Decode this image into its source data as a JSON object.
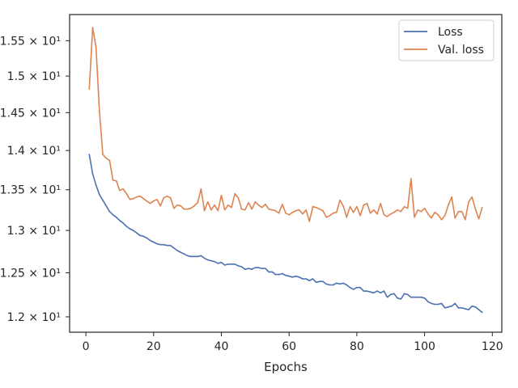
{
  "chart_data": {
    "type": "line",
    "xlabel": "Epochs",
    "ylabel": "",
    "xlim": [
      -4.8,
      122.8
    ],
    "ylim": [
      11.83,
      15.88
    ],
    "x_ticks": [
      0,
      20,
      40,
      60,
      80,
      100,
      120
    ],
    "y_ticks": [
      {
        "value": 12.0,
        "label": "1.2 × 10¹"
      },
      {
        "value": 12.5,
        "label": "1.25 × 10¹"
      },
      {
        "value": 13.0,
        "label": "1.3 × 10¹"
      },
      {
        "value": 13.5,
        "label": "1.35 × 10¹"
      },
      {
        "value": 14.0,
        "label": "1.4 × 10¹"
      },
      {
        "value": 14.5,
        "label": "1.45 × 10¹"
      },
      {
        "value": 15.0,
        "label": "1.5 × 10¹"
      },
      {
        "value": 15.5,
        "label": "1.55 × 10¹"
      }
    ],
    "y_scale": "log",
    "grid": false,
    "legend_position": "top-right",
    "series": [
      {
        "name": "Loss",
        "color": "#4c72b0",
        "x": [
          1,
          2,
          3,
          4,
          5,
          6,
          7,
          8,
          9,
          10,
          11,
          12,
          13,
          14,
          15,
          16,
          17,
          18,
          19,
          20,
          21,
          22,
          23,
          24,
          25,
          26,
          27,
          28,
          29,
          30,
          31,
          32,
          33,
          34,
          35,
          36,
          37,
          38,
          39,
          40,
          41,
          42,
          43,
          44,
          45,
          46,
          47,
          48,
          49,
          50,
          51,
          52,
          53,
          54,
          55,
          56,
          57,
          58,
          59,
          60,
          61,
          62,
          63,
          64,
          65,
          66,
          67,
          68,
          69,
          70,
          71,
          72,
          73,
          74,
          75,
          76,
          77,
          78,
          79,
          80,
          81,
          82,
          83,
          84,
          85,
          86,
          87,
          88,
          89,
          90,
          91,
          92,
          93,
          94,
          95,
          96,
          97,
          98,
          99,
          100,
          101,
          102,
          103,
          104,
          105,
          106,
          107,
          108,
          109,
          110,
          111,
          112,
          113,
          114,
          115,
          116,
          117
        ],
        "values": [
          13.95,
          13.7,
          13.56,
          13.44,
          13.37,
          13.3,
          13.23,
          13.19,
          13.16,
          13.12,
          13.09,
          13.05,
          13.02,
          13.0,
          12.97,
          12.94,
          12.93,
          12.91,
          12.88,
          12.86,
          12.84,
          12.83,
          12.83,
          12.82,
          12.82,
          12.79,
          12.76,
          12.74,
          12.72,
          12.7,
          12.69,
          12.69,
          12.69,
          12.7,
          12.67,
          12.65,
          12.64,
          12.63,
          12.61,
          12.62,
          12.59,
          12.6,
          12.6,
          12.6,
          12.58,
          12.57,
          12.54,
          12.55,
          12.54,
          12.56,
          12.56,
          12.55,
          12.55,
          12.51,
          12.51,
          12.48,
          12.48,
          12.49,
          12.47,
          12.46,
          12.45,
          12.46,
          12.45,
          12.43,
          12.43,
          12.41,
          12.43,
          12.39,
          12.4,
          12.4,
          12.37,
          12.36,
          12.36,
          12.38,
          12.37,
          12.38,
          12.36,
          12.33,
          12.31,
          12.33,
          12.33,
          12.29,
          12.29,
          12.28,
          12.27,
          12.29,
          12.27,
          12.29,
          12.22,
          12.25,
          12.26,
          12.21,
          12.2,
          12.26,
          12.25,
          12.22,
          12.22,
          12.22,
          12.22,
          12.21,
          12.17,
          12.15,
          12.14,
          12.14,
          12.15,
          12.1,
          12.11,
          12.12,
          12.15,
          12.1,
          12.1,
          12.09,
          12.08,
          12.12,
          12.11,
          12.08,
          12.05
        ]
      },
      {
        "name": "Val. loss",
        "color": "#dd8452",
        "x": [
          1,
          2,
          3,
          4,
          5,
          6,
          7,
          8,
          9,
          10,
          11,
          12,
          13,
          14,
          15,
          16,
          17,
          18,
          19,
          20,
          21,
          22,
          23,
          24,
          25,
          26,
          27,
          28,
          29,
          30,
          31,
          32,
          33,
          34,
          35,
          36,
          37,
          38,
          39,
          40,
          41,
          42,
          43,
          44,
          45,
          46,
          47,
          48,
          49,
          50,
          51,
          52,
          53,
          54,
          55,
          56,
          57,
          58,
          59,
          60,
          61,
          62,
          63,
          64,
          65,
          66,
          67,
          68,
          69,
          70,
          71,
          72,
          73,
          74,
          75,
          76,
          77,
          78,
          79,
          80,
          81,
          82,
          83,
          84,
          85,
          86,
          87,
          88,
          89,
          90,
          91,
          92,
          93,
          94,
          95,
          96,
          97,
          98,
          99,
          100,
          101,
          102,
          103,
          104,
          105,
          106,
          107,
          108,
          109,
          110,
          111,
          112,
          113,
          114,
          115,
          116,
          117
        ],
        "values": [
          14.82,
          15.69,
          15.41,
          14.53,
          13.95,
          13.9,
          13.87,
          13.62,
          13.61,
          13.49,
          13.51,
          13.45,
          13.38,
          13.39,
          13.41,
          13.42,
          13.39,
          13.36,
          13.33,
          13.36,
          13.38,
          13.3,
          13.4,
          13.42,
          13.4,
          13.27,
          13.31,
          13.3,
          13.26,
          13.26,
          13.27,
          13.3,
          13.34,
          13.51,
          13.24,
          13.35,
          13.25,
          13.31,
          13.24,
          13.43,
          13.25,
          13.31,
          13.28,
          13.45,
          13.4,
          13.26,
          13.25,
          13.34,
          13.26,
          13.35,
          13.31,
          13.28,
          13.32,
          13.26,
          13.25,
          13.24,
          13.21,
          13.32,
          13.21,
          13.19,
          13.22,
          13.24,
          13.25,
          13.2,
          13.25,
          13.11,
          13.29,
          13.28,
          13.26,
          13.24,
          13.16,
          13.18,
          13.21,
          13.22,
          13.37,
          13.3,
          13.16,
          13.29,
          13.22,
          13.29,
          13.18,
          13.31,
          13.33,
          13.21,
          13.25,
          13.2,
          13.33,
          13.19,
          13.17,
          13.2,
          13.22,
          13.25,
          13.23,
          13.29,
          13.27,
          13.64,
          13.16,
          13.25,
          13.23,
          13.27,
          13.2,
          13.15,
          13.22,
          13.19,
          13.13,
          13.18,
          13.31,
          13.41,
          13.15,
          13.23,
          13.23,
          13.13,
          13.35,
          13.41,
          13.26,
          13.14,
          13.28
        ]
      }
    ]
  }
}
